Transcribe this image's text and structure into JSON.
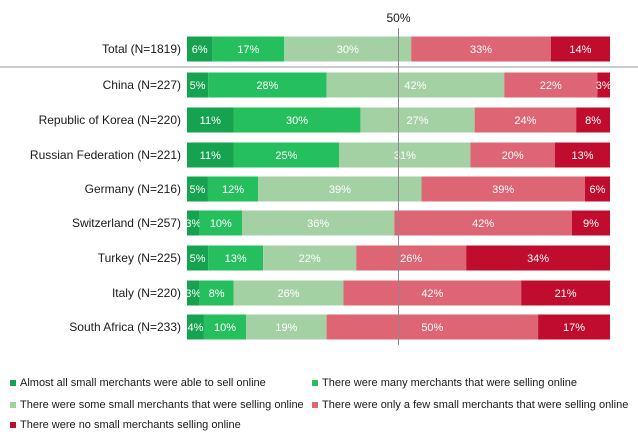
{
  "chart_data": {
    "type": "bar",
    "orientation": "horizontal",
    "stacked": "100%",
    "reference_line_label": "50%",
    "categories": [
      "Total (N=1819)",
      "China (N=227)",
      "Republic of Korea (N=220)",
      "Russian Federation (N=221)",
      "Germany (N=216)",
      "Switzerland (N=257)",
      "Turkey (N=225)",
      "Italy (N=220)",
      "South Africa (N=233)"
    ],
    "series": [
      {
        "name": "Almost all small merchants were able to sell online",
        "color": "#16a34f",
        "values": [
          6,
          5,
          11,
          11,
          5,
          3,
          5,
          3,
          4
        ]
      },
      {
        "name": "There were many merchants that were selling online",
        "color": "#26bf5e",
        "values": [
          17,
          28,
          30,
          25,
          12,
          10,
          13,
          8,
          10
        ]
      },
      {
        "name": "There were some small merchants that were selling online",
        "color": "#a4d1a4",
        "values": [
          30,
          42,
          27,
          31,
          39,
          36,
          22,
          26,
          19
        ]
      },
      {
        "name": "There were only a few small merchants that were selling online",
        "color": "#dd6574",
        "values": [
          33,
          22,
          24,
          20,
          39,
          42,
          26,
          42,
          50
        ]
      },
      {
        "name": "There were no small merchants selling online",
        "color": "#c00d2d",
        "values": [
          14,
          3,
          8,
          13,
          6,
          9,
          34,
          21,
          17
        ]
      }
    ],
    "value_suffix": "%",
    "legend_position": "bottom",
    "grid": false
  }
}
